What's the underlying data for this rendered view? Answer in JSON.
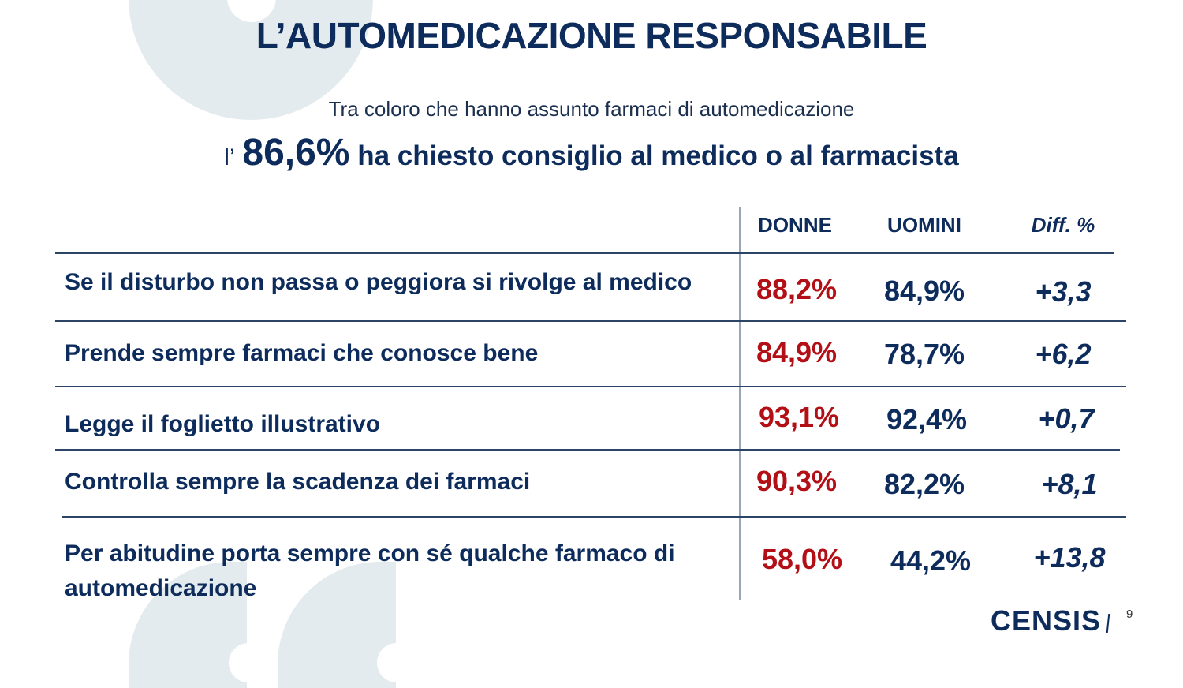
{
  "title": "L’AUTOMEDICAZIONE RESPONSABILE",
  "subtitle": "Tra coloro che hanno assunto farmaci di automedicazione",
  "headline": {
    "prefix": "l’",
    "value": "86,6%",
    "text": "ha chiesto consiglio al medico o al farmacista"
  },
  "table": {
    "columns": [
      "DONNE",
      "UOMINI",
      "Diff. %"
    ],
    "rows": [
      {
        "label": "Se il disturbo non passa o peggiora si rivolge al medico",
        "donne": "88,2%",
        "uomini": "84,9%",
        "diff": "+3,3"
      },
      {
        "label": "Prende sempre farmaci che conosce bene",
        "donne": "84,9%",
        "uomini": "78,7%",
        "diff": "+6,2"
      },
      {
        "label": "Legge il foglietto illustrativo",
        "donne": "93,1%",
        "uomini": "92,4%",
        "diff": "+0,7"
      },
      {
        "label": "Controlla sempre la scadenza dei farmaci",
        "donne": "90,3%",
        "uomini": "82,2%",
        "diff": "+8,1"
      },
      {
        "label": "Per abitudine porta sempre con sé qualche farmaco di automedicazione",
        "donne": "58,0%",
        "uomini": "44,2%",
        "diff": "+13,8"
      }
    ]
  },
  "footer": {
    "logo": "CENSIS",
    "page": "9"
  },
  "colors": {
    "navy": "#0d2c5c",
    "red": "#b30f16",
    "decor": "#e4ebee"
  }
}
